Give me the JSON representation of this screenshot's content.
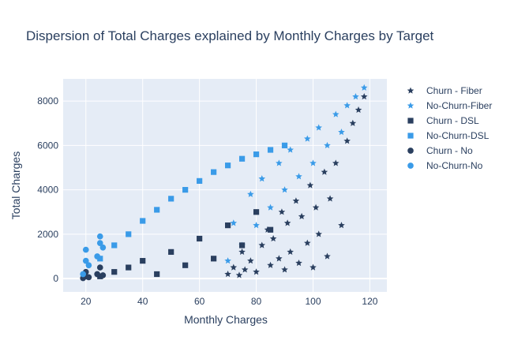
{
  "chart_data": {
    "type": "scatter",
    "title": "Dispersion of Total Charges explained by Monthly Charges by Target",
    "xlabel": "Monthly Charges",
    "ylabel": "Total Charges",
    "xlim": [
      12,
      126
    ],
    "ylim": [
      -600,
      9000
    ],
    "x_ticks": [
      20,
      40,
      60,
      80,
      100,
      120
    ],
    "y_ticks": [
      0,
      2000,
      4000,
      6000,
      8000
    ],
    "grid": true,
    "legend_position": "right",
    "series": [
      {
        "name": "Churn - Fiber",
        "marker": "star",
        "color": "#2a3f5f",
        "x": [
          70,
          72,
          74,
          75,
          76,
          78,
          80,
          82,
          84,
          85,
          86,
          88,
          89,
          90,
          91,
          92,
          94,
          95,
          96,
          98,
          99,
          100,
          101,
          102,
          104,
          105,
          106,
          108,
          110,
          112,
          114,
          116,
          118
        ],
        "y": [
          200,
          500,
          150,
          1200,
          400,
          800,
          300,
          1500,
          2200,
          600,
          1800,
          900,
          3000,
          400,
          2500,
          1200,
          3500,
          700,
          2800,
          1600,
          4200,
          500,
          3200,
          2000,
          4800,
          1000,
          3600,
          5200,
          2400,
          6200,
          7000,
          7600,
          8200
        ]
      },
      {
        "name": "No-Churn-Fiber",
        "marker": "star",
        "color": "#3a9be8",
        "x": [
          70,
          72,
          75,
          78,
          80,
          82,
          85,
          88,
          90,
          92,
          95,
          98,
          100,
          102,
          105,
          108,
          110,
          112,
          115,
          118
        ],
        "y": [
          800,
          2500,
          1500,
          3800,
          2400,
          4500,
          3200,
          5200,
          4000,
          5800,
          4600,
          6300,
          5200,
          6800,
          6000,
          7400,
          6600,
          7800,
          8200,
          8600
        ]
      },
      {
        "name": "Churn - DSL",
        "marker": "square",
        "color": "#2a3f5f",
        "x": [
          25,
          30,
          35,
          40,
          45,
          50,
          55,
          60,
          65,
          70,
          75,
          80,
          85
        ],
        "y": [
          100,
          300,
          500,
          800,
          200,
          1200,
          600,
          1800,
          900,
          2400,
          1500,
          3000,
          2200
        ]
      },
      {
        "name": "No-Churn-DSL",
        "marker": "square",
        "color": "#3a9be8",
        "x": [
          25,
          30,
          35,
          40,
          45,
          50,
          55,
          60,
          65,
          70,
          75,
          80,
          85,
          90
        ],
        "y": [
          900,
          1500,
          2000,
          2600,
          3100,
          3600,
          4000,
          4400,
          4800,
          5100,
          5400,
          5600,
          5800,
          6000
        ]
      },
      {
        "name": "Churn - No",
        "marker": "circle",
        "color": "#2a3f5f",
        "x": [
          19,
          20,
          20,
          21,
          24,
          25,
          26
        ],
        "y": [
          20,
          100,
          300,
          60,
          200,
          500,
          150
        ]
      },
      {
        "name": "No-Churn-No",
        "marker": "circle",
        "color": "#3a9be8",
        "x": [
          19,
          20,
          20,
          21,
          24,
          25,
          25,
          26
        ],
        "y": [
          200,
          800,
          1300,
          600,
          1000,
          1600,
          1900,
          1400
        ]
      }
    ]
  }
}
